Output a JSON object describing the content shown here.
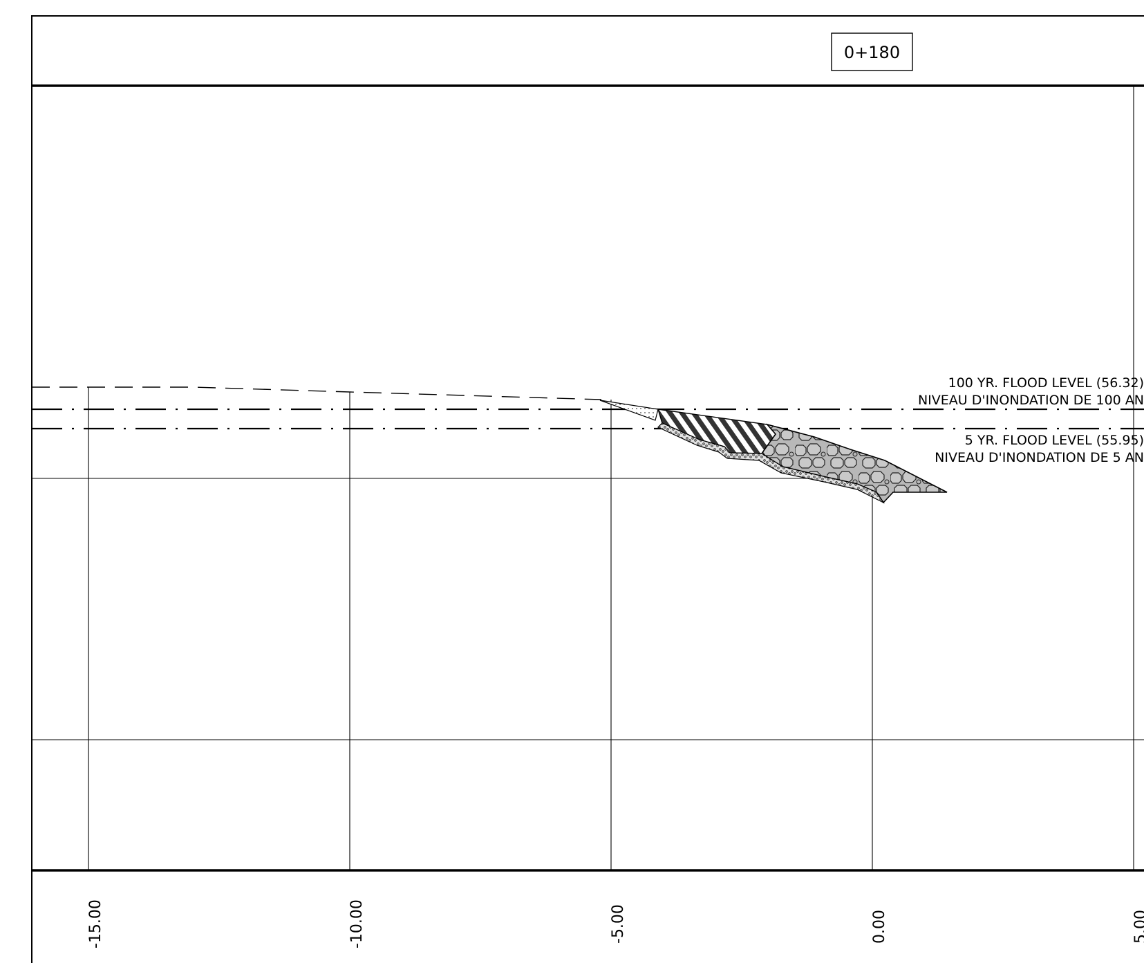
{
  "station_label": "0+180",
  "annotations": {
    "flood_100_en": "100 YR. FLOOD LEVEL (56.32)",
    "flood_100_fr": "NIVEAU D'INONDATION DE 100 AN",
    "flood_5_en": "5 YR. FLOOD LEVEL (55.95)",
    "flood_5_fr": "NIVEAU D'INONDATION DE 5 AN"
  },
  "x_axis": {
    "tick_labels": [
      "-15.00",
      "-10.00",
      "-5.00",
      "0.00",
      "5.00"
    ]
  },
  "colors": {
    "line": "#000000",
    "riprap_fill": "#b8b8b8",
    "granular_fill": "#d9d9d9",
    "hatch_fill": "#555555"
  }
}
